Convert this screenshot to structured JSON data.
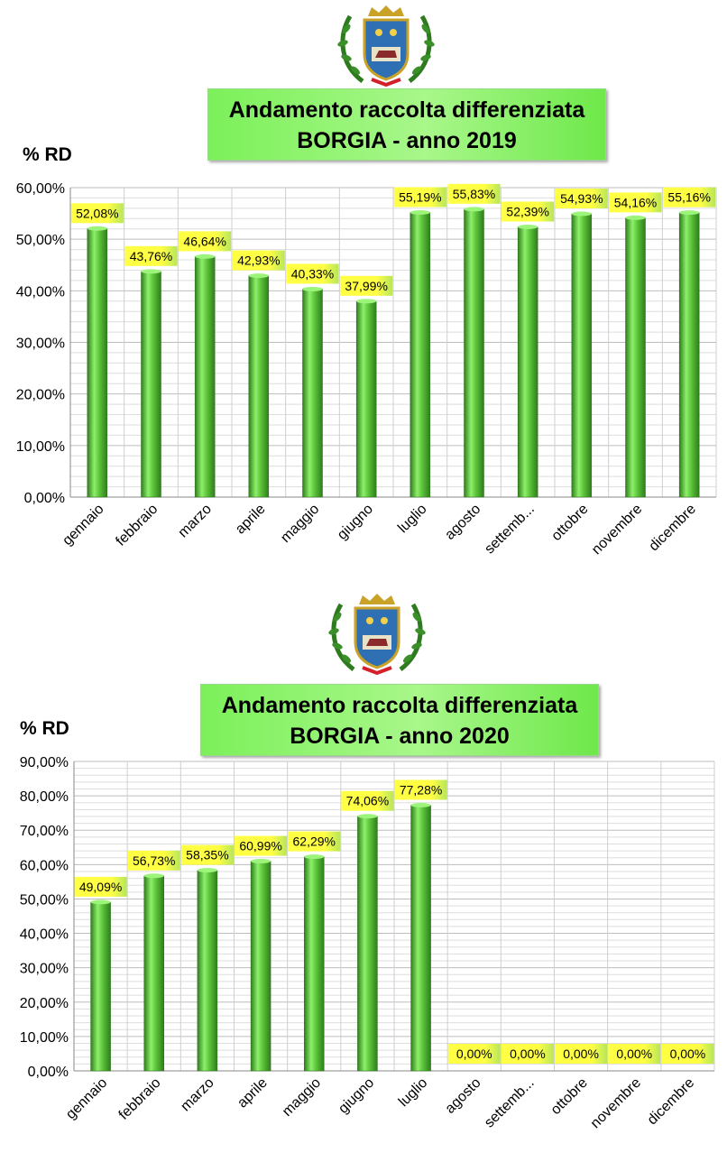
{
  "chart_data": [
    {
      "type": "bar",
      "title_lines": [
        "Andamento raccolta differenziata",
        "BORGIA - anno 2019"
      ],
      "ylabel": "% RD",
      "categories": [
        "gennaio",
        "febbraio",
        "marzo",
        "aprile",
        "maggio",
        "giugno",
        "luglio",
        "agosto",
        "settemb...",
        "ottobre",
        "novembre",
        "dicembre"
      ],
      "values": [
        52.08,
        43.76,
        46.64,
        42.93,
        40.33,
        37.99,
        55.19,
        55.83,
        52.39,
        54.93,
        54.16,
        55.16
      ],
      "data_labels": [
        "52,08%",
        "43,76%",
        "46,64%",
        "42,93%",
        "40,33%",
        "37,99%",
        "55,19%",
        "55,83%",
        "52,39%",
        "54,93%",
        "54,16%",
        "55,16%"
      ],
      "yticks": [
        "0,00%",
        "10,00%",
        "20,00%",
        "30,00%",
        "40,00%",
        "50,00%",
        "60,00%"
      ],
      "ylim": [
        0,
        60
      ],
      "grid": true,
      "colors": {
        "bar": "#5cc43a",
        "bar_dark": "#2f7d1c",
        "label_bg": "#ffff44"
      }
    },
    {
      "type": "bar",
      "title_lines": [
        "Andamento raccolta differenziata",
        "BORGIA - anno 2020"
      ],
      "ylabel": "% RD",
      "categories": [
        "gennaio",
        "febbraio",
        "marzo",
        "aprile",
        "maggio",
        "giugno",
        "luglio",
        "agosto",
        "settemb...",
        "ottobre",
        "novembre",
        "dicembre"
      ],
      "values": [
        49.09,
        56.73,
        58.35,
        60.99,
        62.29,
        74.06,
        77.28,
        0,
        0,
        0,
        0,
        0
      ],
      "data_labels": [
        "49,09%",
        "56,73%",
        "58,35%",
        "60,99%",
        "62,29%",
        "74,06%",
        "77,28%",
        "0,00%",
        "0,00%",
        "0,00%",
        "0,00%",
        "0,00%"
      ],
      "yticks": [
        "0,00%",
        "10,00%",
        "20,00%",
        "30,00%",
        "40,00%",
        "50,00%",
        "60,00%",
        "70,00%",
        "80,00%",
        "90,00%"
      ],
      "ylim": [
        0,
        90
      ],
      "grid": true,
      "colors": {
        "bar": "#5cc43a",
        "bar_dark": "#2f7d1c",
        "label_bg": "#ffff44"
      }
    }
  ]
}
